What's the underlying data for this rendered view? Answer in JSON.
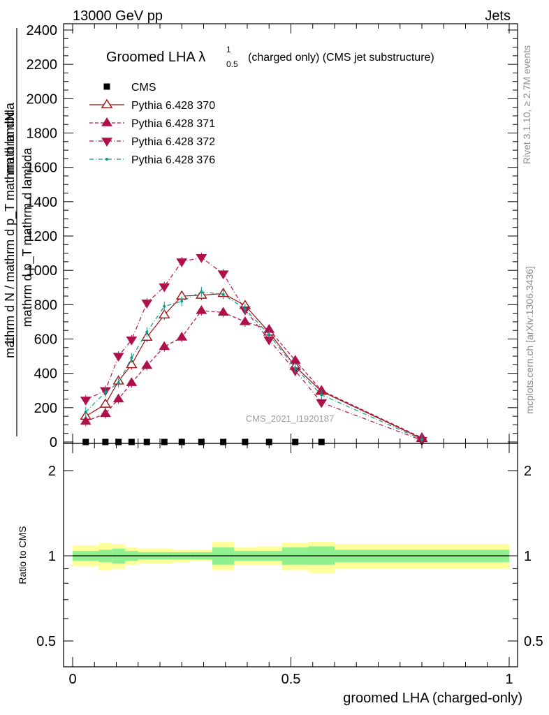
{
  "header": {
    "left": "13000 GeV pp",
    "right": "Jets"
  },
  "side_labels": {
    "rivet": "Rivet 3.1.10, ≥ 2.7M events",
    "mcplots": "mcplots.cern.ch [arXiv:1306.3436]"
  },
  "chart_data": [
    {
      "type": "line",
      "panel": "main",
      "title_main": "Groomed LHA λ",
      "title_sup": "1",
      "title_sub": "0.5",
      "title_extra": "(charged only) (CMS jet substructure)",
      "ylabel_numerator": "mathrm dN",
      "ylabel_numerator2": "mathrm d p_T mathrm d lambda",
      "ylabel_denominator": "mathrm d N / mathrm d p_T mathrm d lambda",
      "ylabel_prefix": "1",
      "watermark": "CMS_2021_I1920187",
      "xlim": [
        0,
        1
      ],
      "ylim": [
        0,
        2400
      ],
      "yticks": [
        0,
        200,
        400,
        600,
        800,
        1000,
        1200,
        1400,
        1600,
        1800,
        2000,
        2200,
        2400
      ],
      "legend": "top-left",
      "x": [
        0.03,
        0.075,
        0.105,
        0.135,
        0.17,
        0.21,
        0.25,
        0.295,
        0.345,
        0.395,
        0.45,
        0.51,
        0.57,
        0.8
      ],
      "series": [
        {
          "name": "CMS",
          "color": "#000000",
          "marker": "square",
          "line": "none",
          "values": [
            0,
            0,
            0,
            0,
            0,
            0,
            0,
            0,
            0,
            0,
            0,
            0,
            0,
            null
          ]
        },
        {
          "name": "Pythia 6.428 370",
          "color": "#a01010",
          "marker": "triangle-up-open",
          "line": "solid",
          "values": [
            150,
            220,
            355,
            450,
            610,
            740,
            850,
            855,
            865,
            795,
            640,
            440,
            295,
            20
          ]
        },
        {
          "name": "Pythia 6.428 371",
          "color": "#b0104a",
          "marker": "triangle-up",
          "line": "dashed",
          "values": [
            120,
            165,
            250,
            345,
            445,
            555,
            610,
            765,
            755,
            700,
            655,
            475,
            300,
            25
          ]
        },
        {
          "name": "Pythia 6.428 372",
          "color": "#b0104a",
          "marker": "triangle-down",
          "line": "dashdot",
          "values": [
            245,
            300,
            500,
            595,
            810,
            905,
            1050,
            1075,
            980,
            770,
            595,
            415,
            230,
            10
          ]
        },
        {
          "name": "Pythia 6.428 376",
          "color": "#0a9c88",
          "marker": "dot",
          "line": "dashdot",
          "values": [
            175,
            290,
            345,
            490,
            640,
            790,
            820,
            875,
            860,
            775,
            625,
            430,
            275,
            15
          ]
        }
      ]
    },
    {
      "type": "area",
      "panel": "ratio",
      "ylabel": "Ratio to CMS",
      "xlabel": "groomed LHA (charged-only)",
      "xlim": [
        0,
        1
      ],
      "ylim": [
        0.5,
        2.2
      ],
      "scale": "log",
      "yticks": [
        "0.5",
        "1",
        "2"
      ],
      "xticks": [
        "0",
        "0.5",
        "1"
      ],
      "bins": [
        0,
        0.06,
        0.09,
        0.12,
        0.15,
        0.19,
        0.23,
        0.27,
        0.32,
        0.37,
        0.42,
        0.48,
        0.54,
        0.6,
        1.0
      ],
      "stat_band_lo": [
        0.96,
        0.95,
        0.94,
        0.96,
        0.97,
        0.97,
        0.97,
        0.97,
        0.93,
        0.96,
        0.96,
        0.93,
        0.93,
        0.95
      ],
      "stat_band_hi": [
        1.04,
        1.05,
        1.06,
        1.04,
        1.03,
        1.03,
        1.03,
        1.03,
        1.07,
        1.04,
        1.04,
        1.07,
        1.08,
        1.05
      ],
      "total_band_lo": [
        0.92,
        0.89,
        0.9,
        0.93,
        0.94,
        0.94,
        0.95,
        0.96,
        0.89,
        0.93,
        0.93,
        0.89,
        0.87,
        0.9
      ],
      "total_band_hi": [
        1.09,
        1.11,
        1.1,
        1.07,
        1.06,
        1.06,
        1.05,
        1.05,
        1.12,
        1.07,
        1.08,
        1.11,
        1.12,
        1.1
      ],
      "stat_color": "#90f090",
      "total_color": "#ffff99",
      "reference": 1
    }
  ]
}
